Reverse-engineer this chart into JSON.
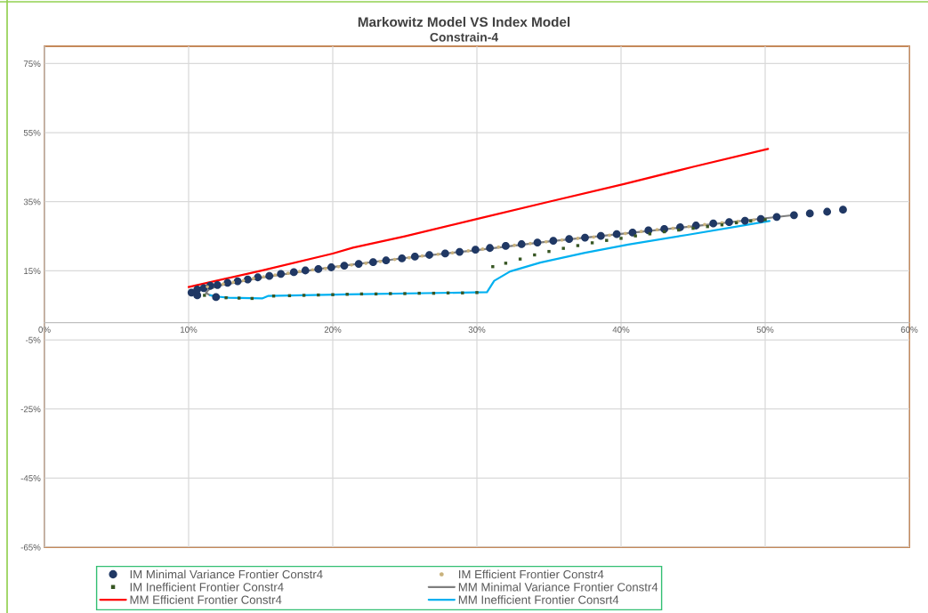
{
  "chart_data": {
    "type": "scatter",
    "title": "Markowitz Model VS Index Model",
    "subtitle": "Constrain-4",
    "xlim": [
      0,
      60
    ],
    "ylim": [
      -65,
      80
    ],
    "xticks": [
      {
        "value": 0,
        "label": "0%"
      },
      {
        "value": 10,
        "label": "10%"
      },
      {
        "value": 20,
        "label": "20%"
      },
      {
        "value": 30,
        "label": "30%"
      },
      {
        "value": 40,
        "label": "40%"
      },
      {
        "value": 50,
        "label": "50%"
      },
      {
        "value": 60,
        "label": "60%"
      }
    ],
    "yticks": [
      {
        "value": -65,
        "label": "-65%"
      },
      {
        "value": -45,
        "label": "-45%"
      },
      {
        "value": -25,
        "label": "-25%"
      },
      {
        "value": -5,
        "label": "-5%"
      },
      {
        "value": 15,
        "label": "15%"
      },
      {
        "value": 35,
        "label": "35%"
      },
      {
        "value": 55,
        "label": "55%"
      },
      {
        "value": 75,
        "label": "75%"
      }
    ],
    "grid": true,
    "legend": "bottom",
    "series": [
      {
        "name": "MM Minimal Variance Frontier Constr4",
        "type": "line",
        "marker": "none",
        "color": "#7f7f7f",
        "x": [
          12.1,
          11.5,
          11.2,
          11.4,
          12.0,
          15,
          20,
          25,
          30,
          35,
          40,
          45,
          51.7
        ],
        "values": [
          7.5,
          7.9,
          8.6,
          9.6,
          10.6,
          13.0,
          16.1,
          18.7,
          21.0,
          23.5,
          25.7,
          27.9,
          31.0
        ]
      },
      {
        "name": "MM Efficient Frontier Constr4",
        "type": "line",
        "marker": "none",
        "color": "#ff0000",
        "x": [
          10.0,
          15,
          20,
          21.4,
          25,
          30,
          35,
          40.2,
          45,
          50.2
        ],
        "values": [
          10.3,
          15.0,
          20.0,
          21.7,
          25.0,
          30.0,
          35.0,
          40.1,
          45.1,
          50.3
        ]
      },
      {
        "name": "MM Inefficient Frontier Consrt4",
        "type": "line",
        "marker": "none",
        "color": "#00b0f0",
        "x": [
          11.5,
          12.1,
          12.8,
          15.1,
          15.5,
          21.0,
          30.7,
          31.2,
          32.3,
          34.4,
          37.5,
          40.5,
          44.6,
          50.3
        ],
        "values": [
          7.9,
          7.5,
          7.2,
          7.0,
          7.7,
          8.2,
          8.8,
          12.1,
          14.8,
          17.4,
          20.2,
          22.6,
          25.4,
          29.4
        ]
      },
      {
        "name": "IM Minimal Variance Frontier Constr4",
        "marker": "circle",
        "color": "#203864",
        "x": [
          10.6,
          11.9,
          10.2,
          10.6,
          11.05,
          11.5,
          12.0,
          12.7,
          13.4,
          14.1,
          14.8,
          15.6,
          16.4,
          17.3,
          18.1,
          19.0,
          19.9,
          20.8,
          21.8,
          22.8,
          23.7,
          24.8,
          25.7,
          26.7,
          27.8,
          28.8,
          29.9,
          30.9,
          32.0,
          33.1,
          34.2,
          35.3,
          36.4,
          37.5,
          38.6,
          39.7,
          40.8,
          41.9,
          43.0,
          44.1,
          45.2,
          46.4,
          47.5,
          48.6,
          49.7,
          50.8,
          52.0,
          53.1,
          54.3,
          55.4
        ],
        "values": [
          7.9,
          7.4,
          8.7,
          9.6,
          10.0,
          10.7,
          10.9,
          11.5,
          12.0,
          12.5,
          13.1,
          13.5,
          14.1,
          14.6,
          15.1,
          15.5,
          16.0,
          16.5,
          17.0,
          17.5,
          18.0,
          18.6,
          19.1,
          19.6,
          20.0,
          20.5,
          21.1,
          21.6,
          22.2,
          22.7,
          23.2,
          23.7,
          24.2,
          24.6,
          25.1,
          25.6,
          26.1,
          26.7,
          27.1,
          27.6,
          28.1,
          28.7,
          29.1,
          29.5,
          30.0,
          30.6,
          31.1,
          31.6,
          32.1,
          32.7
        ]
      },
      {
        "name": "IM Efficient Frontier Constr4",
        "marker": "circle",
        "color": "#c9b27c",
        "x": [
          11.3,
          12.4,
          13.1,
          13.8,
          14.5,
          15.2,
          16.0,
          16.9,
          17.7,
          18.6,
          19.5,
          20.4,
          21.3,
          22.3,
          23.3,
          24.3,
          25.3,
          26.2,
          27.3,
          28.3,
          29.4,
          30.4,
          31.5,
          32.6,
          33.7,
          34.8,
          35.9,
          37.0,
          38.1,
          39.2,
          40.3,
          41.4,
          42.5,
          43.6,
          44.7,
          45.8,
          47.0,
          48.1,
          49.2
        ],
        "values": [
          10.4,
          11.2,
          11.7,
          12.2,
          12.8,
          13.3,
          13.8,
          14.3,
          14.8,
          15.3,
          15.7,
          16.2,
          16.7,
          17.2,
          17.7,
          18.3,
          18.8,
          19.3,
          19.8,
          20.2,
          20.8,
          21.3,
          21.9,
          22.4,
          22.9,
          23.4,
          23.9,
          24.4,
          24.8,
          25.3,
          25.8,
          26.4,
          26.9,
          27.3,
          27.8,
          28.4,
          28.9,
          29.3,
          29.7
        ]
      },
      {
        "name": "IM Inefficient Frontier Constr4",
        "marker": "square",
        "color": "#375623",
        "x": [
          11.1,
          12.6,
          13.5,
          14.4,
          15.9,
          17.0,
          18.0,
          19.0,
          20.0,
          21.0,
          22.0,
          23.0,
          24.0,
          25.0,
          26.0,
          27.0,
          28.0,
          29.0,
          30.0,
          31.1,
          32.0,
          33.0,
          34.0,
          35.0,
          36.0,
          37.0,
          38.0,
          39.0,
          40.0,
          41.0,
          42.0,
          43.0,
          44.0,
          45.0,
          46.0,
          47.0,
          48.0,
          49.0,
          50.0
        ],
        "values": [
          7.9,
          7.2,
          7.1,
          7.0,
          7.7,
          7.8,
          7.9,
          8.0,
          8.1,
          8.2,
          8.3,
          8.3,
          8.4,
          8.4,
          8.5,
          8.5,
          8.6,
          8.6,
          8.7,
          16.2,
          17.2,
          18.4,
          19.6,
          20.6,
          21.5,
          22.3,
          23.1,
          23.8,
          24.4,
          25.1,
          25.7,
          26.3,
          26.8,
          27.3,
          27.8,
          28.3,
          28.9,
          29.4,
          29.8
        ]
      }
    ]
  }
}
